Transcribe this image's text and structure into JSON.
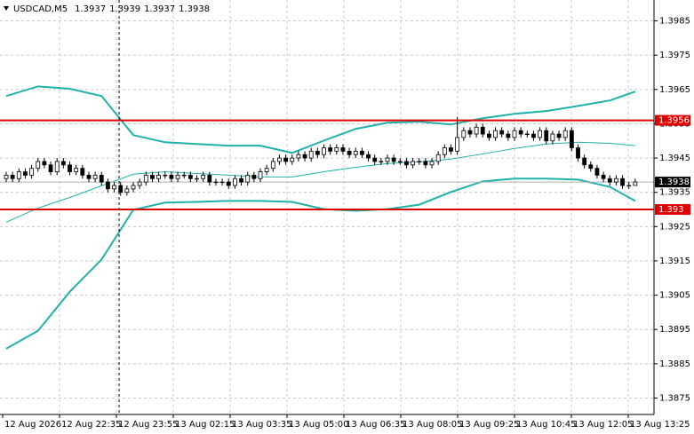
{
  "chart_data": {
    "type": "candlestick",
    "symbol": "USDCAD,M5",
    "ylim": [
      1.38702,
      1.39911
    ],
    "yticks": [
      1.3985,
      1.3975,
      1.3965,
      1.3955,
      1.3945,
      1.3935,
      1.3925,
      1.3915,
      1.3905,
      1.3895,
      1.3885,
      1.3875
    ],
    "grid": true,
    "x_labels": [
      "12 Aug 2026",
      "12 Aug 22:35",
      "12 Aug 23:55",
      "13 Aug 02:15",
      "13 Aug 03:35",
      "13 Aug 05:00",
      "13 Aug 06:35",
      "13 Aug 08:05",
      "13 Aug 09:25",
      "13 Aug 10:45",
      "13 Aug 12:05",
      "13 Aug 13:25"
    ],
    "bull_color": "#ffffff",
    "bear_color": "#000000",
    "candles": [
      [
        1.3939,
        1.3941,
        1.3938,
        1.394
      ],
      [
        1.394,
        1.3941,
        1.3938,
        1.3939
      ],
      [
        1.3939,
        1.3942,
        1.3938,
        1.3941
      ],
      [
        1.3941,
        1.3942,
        1.3939,
        1.394
      ],
      [
        1.394,
        1.3943,
        1.3939,
        1.3942
      ],
      [
        1.3942,
        1.3945,
        1.3941,
        1.3944
      ],
      [
        1.3944,
        1.3945,
        1.3942,
        1.3943
      ],
      [
        1.3943,
        1.3944,
        1.394,
        1.3941
      ],
      [
        1.3941,
        1.3945,
        1.394,
        1.3944
      ],
      [
        1.3944,
        1.3945,
        1.3942,
        1.3943
      ],
      [
        1.3943,
        1.3944,
        1.394,
        1.3941
      ],
      [
        1.3941,
        1.3943,
        1.394,
        1.3942
      ],
      [
        1.3942,
        1.3943,
        1.3939,
        1.394
      ],
      [
        1.394,
        1.3941,
        1.3938,
        1.3939
      ],
      [
        1.3939,
        1.3941,
        1.3938,
        1.394
      ],
      [
        1.394,
        1.3941,
        1.3937,
        1.3938
      ],
      [
        1.3938,
        1.3939,
        1.3935,
        1.3936
      ],
      [
        1.3936,
        1.3938,
        1.3935,
        1.3937
      ],
      [
        1.3937,
        1.3938,
        1.3934,
        1.3935
      ],
      [
        1.3935,
        1.3937,
        1.3934,
        1.3936
      ],
      [
        1.3936,
        1.3938,
        1.3935,
        1.3937
      ],
      [
        1.3937,
        1.3939,
        1.3936,
        1.3938
      ],
      [
        1.3938,
        1.3941,
        1.3937,
        1.394
      ],
      [
        1.394,
        1.3941,
        1.3938,
        1.3939
      ],
      [
        1.3939,
        1.3941,
        1.3938,
        1.394
      ],
      [
        1.394,
        1.3941,
        1.3939,
        1.394
      ],
      [
        1.394,
        1.3941,
        1.3938,
        1.3939
      ],
      [
        1.3939,
        1.3941,
        1.3938,
        1.394
      ],
      [
        1.394,
        1.3941,
        1.3939,
        1.394
      ],
      [
        1.394,
        1.3941,
        1.3938,
        1.3939
      ],
      [
        1.3939,
        1.394,
        1.3938,
        1.3939
      ],
      [
        1.3939,
        1.3941,
        1.3938,
        1.394
      ],
      [
        1.394,
        1.3941,
        1.3937,
        1.3938
      ],
      [
        1.3938,
        1.3939,
        1.3937,
        1.3938
      ],
      [
        1.3938,
        1.3939,
        1.3937,
        1.3938
      ],
      [
        1.3938,
        1.3939,
        1.3936,
        1.3937
      ],
      [
        1.3937,
        1.394,
        1.3936,
        1.3939
      ],
      [
        1.3939,
        1.394,
        1.3937,
        1.3938
      ],
      [
        1.3938,
        1.3941,
        1.3937,
        1.394
      ],
      [
        1.394,
        1.3941,
        1.3938,
        1.3939
      ],
      [
        1.3939,
        1.3942,
        1.3938,
        1.3941
      ],
      [
        1.3941,
        1.3943,
        1.394,
        1.3942
      ],
      [
        1.3942,
        1.3945,
        1.3941,
        1.3944
      ],
      [
        1.3944,
        1.3946,
        1.3943,
        1.3945
      ],
      [
        1.3945,
        1.3946,
        1.3943,
        1.3944
      ],
      [
        1.3944,
        1.3946,
        1.3943,
        1.3945
      ],
      [
        1.3945,
        1.3947,
        1.3944,
        1.3946
      ],
      [
        1.3946,
        1.3947,
        1.3944,
        1.3945
      ],
      [
        1.3945,
        1.3948,
        1.3944,
        1.3947
      ],
      [
        1.3947,
        1.3948,
        1.3945,
        1.3946
      ],
      [
        1.3946,
        1.3949,
        1.3945,
        1.3948
      ],
      [
        1.3948,
        1.3949,
        1.3946,
        1.3947
      ],
      [
        1.3947,
        1.3949,
        1.3946,
        1.3948
      ],
      [
        1.3948,
        1.3949,
        1.3946,
        1.3947
      ],
      [
        1.3947,
        1.3948,
        1.3945,
        1.3946
      ],
      [
        1.3946,
        1.3948,
        1.3945,
        1.3947
      ],
      [
        1.3947,
        1.3948,
        1.3945,
        1.3946
      ],
      [
        1.3946,
        1.3947,
        1.3944,
        1.3945
      ],
      [
        1.3945,
        1.3946,
        1.3943,
        1.3944
      ],
      [
        1.3944,
        1.3945,
        1.3943,
        1.3944
      ],
      [
        1.3944,
        1.3946,
        1.3943,
        1.3945
      ],
      [
        1.3945,
        1.3946,
        1.3943,
        1.3944
      ],
      [
        1.3944,
        1.3945,
        1.3943,
        1.3944
      ],
      [
        1.3944,
        1.3945,
        1.3942,
        1.3943
      ],
      [
        1.3943,
        1.3945,
        1.3942,
        1.3944
      ],
      [
        1.3944,
        1.3945,
        1.3943,
        1.3944
      ],
      [
        1.3944,
        1.3945,
        1.3942,
        1.3943
      ],
      [
        1.3943,
        1.3945,
        1.3942,
        1.3944
      ],
      [
        1.3944,
        1.3947,
        1.3943,
        1.3946
      ],
      [
        1.3946,
        1.3949,
        1.3945,
        1.3948
      ],
      [
        1.3948,
        1.3949,
        1.3946,
        1.3947
      ],
      [
        1.3947,
        1.3957,
        1.3946,
        1.3951
      ],
      [
        1.3951,
        1.3954,
        1.395,
        1.3953
      ],
      [
        1.3953,
        1.3954,
        1.3951,
        1.3952
      ],
      [
        1.3952,
        1.3955,
        1.3951,
        1.3954
      ],
      [
        1.3954,
        1.3955,
        1.3951,
        1.3952
      ],
      [
        1.3952,
        1.3953,
        1.395,
        1.3951
      ],
      [
        1.3951,
        1.3954,
        1.395,
        1.3953
      ],
      [
        1.3953,
        1.3954,
        1.3951,
        1.3952
      ],
      [
        1.3952,
        1.3953,
        1.395,
        1.3951
      ],
      [
        1.3951,
        1.3954,
        1.395,
        1.3953
      ],
      [
        1.3953,
        1.3954,
        1.3951,
        1.3952
      ],
      [
        1.3952,
        1.3953,
        1.3951,
        1.3952
      ],
      [
        1.3952,
        1.3953,
        1.395,
        1.3951
      ],
      [
        1.3951,
        1.3954,
        1.395,
        1.3953
      ],
      [
        1.3953,
        1.3954,
        1.3949,
        1.395
      ],
      [
        1.395,
        1.3953,
        1.3949,
        1.3952
      ],
      [
        1.3952,
        1.3953,
        1.395,
        1.3951
      ],
      [
        1.3951,
        1.3954,
        1.395,
        1.3953
      ],
      [
        1.3953,
        1.3954,
        1.3947,
        1.3948
      ],
      [
        1.3948,
        1.3949,
        1.3944,
        1.3945
      ],
      [
        1.3945,
        1.3946,
        1.3942,
        1.3943
      ],
      [
        1.3943,
        1.3944,
        1.3941,
        1.3942
      ],
      [
        1.3942,
        1.3943,
        1.3939,
        1.394
      ],
      [
        1.394,
        1.3941,
        1.3938,
        1.3939
      ],
      [
        1.3939,
        1.394,
        1.3937,
        1.3938
      ],
      [
        1.3938,
        1.394,
        1.3937,
        1.3939
      ],
      [
        1.3939,
        1.394,
        1.3936,
        1.3937
      ],
      [
        1.3937,
        1.3938,
        1.3936,
        1.3937
      ],
      [
        1.3937,
        1.3939,
        1.3937,
        1.3938
      ]
    ],
    "bands": {
      "color": "#20b2aa",
      "x": [
        0,
        5,
        10,
        15,
        20,
        25,
        30,
        35,
        40,
        45,
        50,
        55,
        60,
        65,
        70,
        75,
        80,
        85,
        90,
        95,
        99
      ],
      "upper": [
        1.39631,
        1.39659,
        1.39652,
        1.39631,
        1.39517,
        1.39496,
        1.39491,
        1.39486,
        1.39486,
        1.39465,
        1.39501,
        1.39535,
        1.39553,
        1.39556,
        1.39548,
        1.39566,
        1.39579,
        1.39587,
        1.39602,
        1.39618,
        1.39644
      ],
      "middle": [
        1.39263,
        1.39304,
        1.39335,
        1.39369,
        1.39403,
        1.3941,
        1.39405,
        1.394,
        1.39395,
        1.39395,
        1.3941,
        1.39423,
        1.39434,
        1.39439,
        1.39447,
        1.39462,
        1.39478,
        1.39491,
        1.39496,
        1.39493,
        1.39486
      ],
      "lower": [
        1.38894,
        1.38946,
        1.3906,
        1.39154,
        1.39299,
        1.3932,
        1.39322,
        1.39325,
        1.39325,
        1.39322,
        1.39301,
        1.39296,
        1.39301,
        1.39314,
        1.39351,
        1.39382,
        1.3939,
        1.3939,
        1.39387,
        1.39366,
        1.39325
      ]
    },
    "levels": [
      {
        "value": 1.3956,
        "color": "#e00000"
      },
      {
        "value": 1.393,
        "color": "#e00000"
      }
    ]
  }
}
